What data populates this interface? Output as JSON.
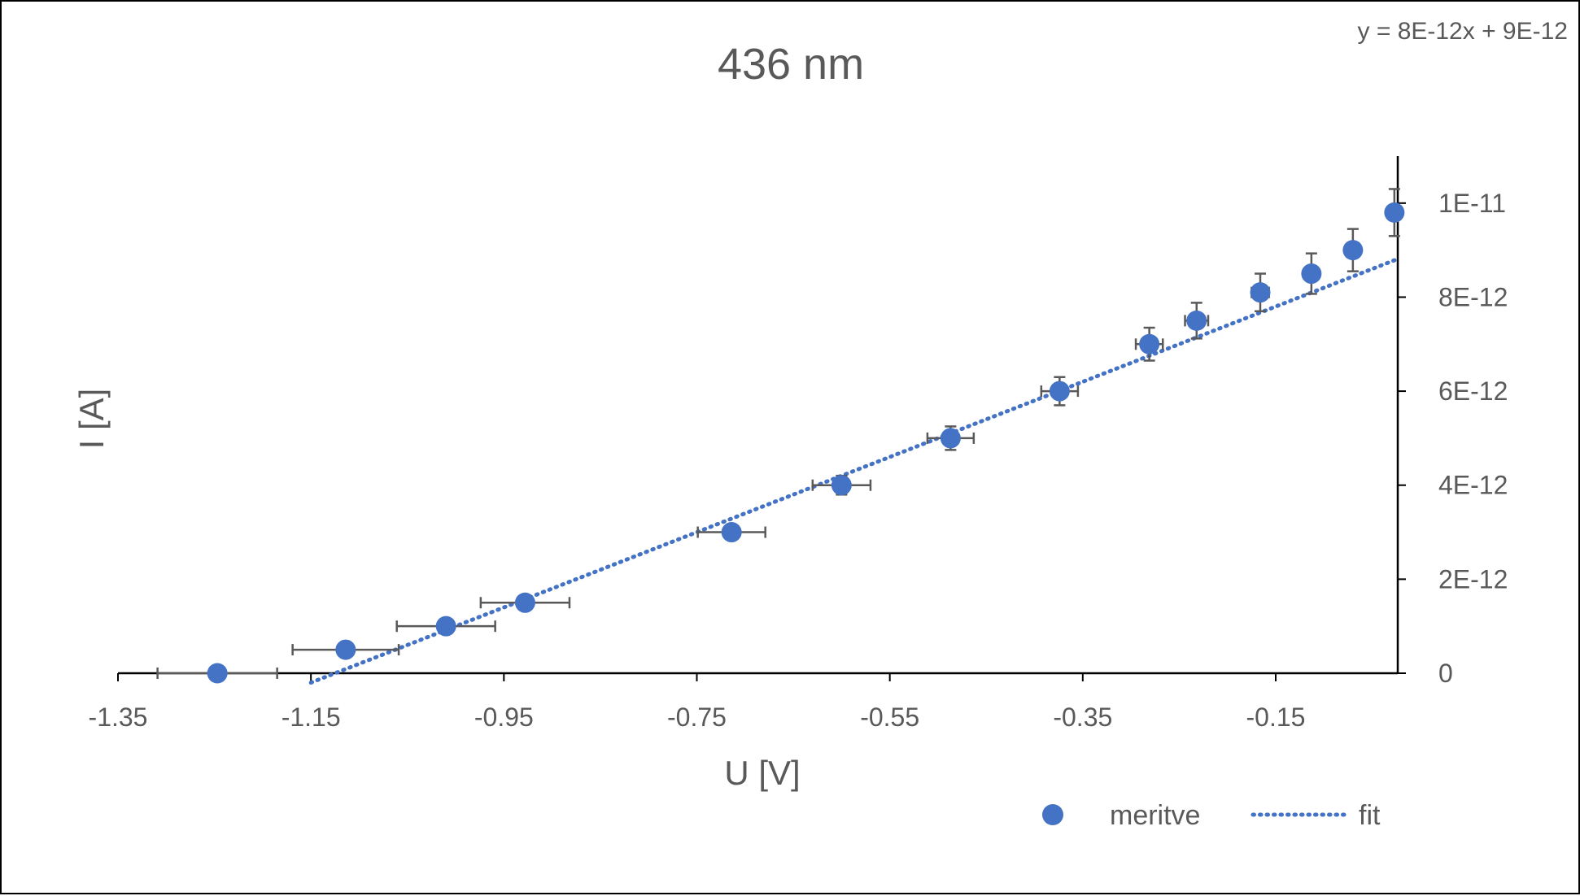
{
  "chart_data": {
    "type": "scatter",
    "title": "436 nm",
    "xlabel": "U [V]",
    "ylabel": "I [A]",
    "xlim": [
      -1.35,
      -0.0235
    ],
    "ylim": [
      0,
      1.1e-11
    ],
    "x_ticks": [
      -1.35,
      -1.15,
      -0.95,
      -0.75,
      -0.55,
      -0.35,
      -0.15
    ],
    "x_tick_labels": [
      "-1.35",
      "-1.15",
      "-0.95",
      "-0.75",
      "-0.55",
      "-0.35",
      "-0.15"
    ],
    "y_ticks": [
      0,
      2e-12,
      4e-12,
      6e-12,
      8e-12,
      1e-11
    ],
    "y_tick_labels": [
      "0",
      "2E-12",
      "4E-12",
      "6E-12",
      "8E-12",
      "1E-11"
    ],
    "y_axis_side": "right",
    "grid": false,
    "legend_position": "bottom-right",
    "trendline_equation": "y = 8E-12x + 9E-12",
    "series": [
      {
        "name": "meritve",
        "kind": "points",
        "color": "#4472C4",
        "points": [
          {
            "x": -1.247,
            "y": 0.0,
            "xerr": 0.062,
            "yerr": 0
          },
          {
            "x": -1.114,
            "y": 5e-13,
            "xerr": 0.055,
            "yerr": 0
          },
          {
            "x": -1.01,
            "y": 1e-12,
            "xerr": 0.051,
            "yerr": 0
          },
          {
            "x": -0.928,
            "y": 1.5e-12,
            "xerr": 0.046,
            "yerr": 0
          },
          {
            "x": -0.714,
            "y": 3e-12,
            "xerr": 0.035,
            "yerr": 0
          },
          {
            "x": -0.6,
            "y": 4e-12,
            "xerr": 0.03,
            "yerr": 2e-13
          },
          {
            "x": -0.487,
            "y": 5e-12,
            "xerr": 0.024,
            "yerr": 2.5e-13
          },
          {
            "x": -0.374,
            "y": 6e-12,
            "xerr": 0.019,
            "yerr": 3e-13
          },
          {
            "x": -0.281,
            "y": 7e-12,
            "xerr": 0.014,
            "yerr": 3.5e-13
          },
          {
            "x": -0.232,
            "y": 7.5e-12,
            "xerr": 0.012,
            "yerr": 3.8e-13
          },
          {
            "x": -0.166,
            "y": 8.1e-12,
            "xerr": 0.009,
            "yerr": 4e-13
          },
          {
            "x": -0.113,
            "y": 8.5e-12,
            "xerr": 0.006,
            "yerr": 4.3e-13
          },
          {
            "x": -0.07,
            "y": 9e-12,
            "xerr": 0.004,
            "yerr": 4.5e-13
          },
          {
            "x": -0.027,
            "y": 9.8e-12,
            "xerr": 0.002,
            "yerr": 5e-13
          }
        ]
      },
      {
        "name": "fit",
        "kind": "dotted-line",
        "color": "#4472C4",
        "slope": 8e-12,
        "intercept": 9e-12,
        "x_range": [
          -1.15,
          -0.0235
        ]
      }
    ]
  }
}
